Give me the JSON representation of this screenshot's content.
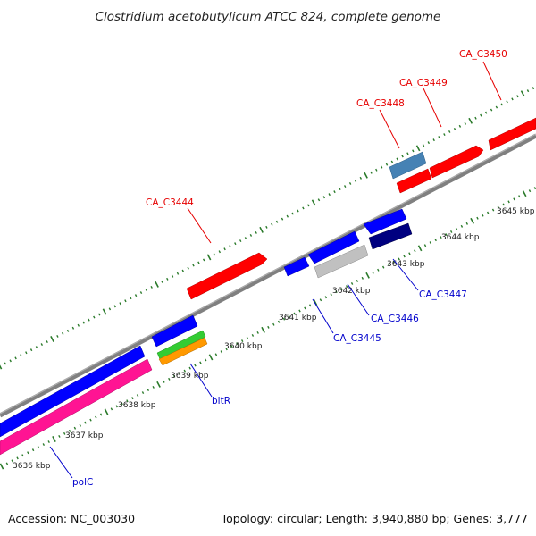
{
  "title": "Clostridium acetobutylicum ATCC 824, complete genome",
  "accession": "Accession: NC_003030",
  "summary": "Topology: circular; Length: 3,940,880 bp; Genes: 3,777",
  "colors": {
    "forward_label": "#e60000",
    "reverse_label": "#0000cc",
    "backbone": "#808080",
    "tick": "#2a7a2a"
  },
  "scale_ticks": [
    {
      "label": "3636 kbp"
    },
    {
      "label": "3637 kbp"
    },
    {
      "label": "3638 kbp"
    },
    {
      "label": "3639 kbp"
    },
    {
      "label": "3640 kbp"
    },
    {
      "label": "3641 kbp"
    },
    {
      "label": "3642 kbp"
    },
    {
      "label": "3643 kbp"
    },
    {
      "label": "3644 kbp"
    },
    {
      "label": "3645 kbp"
    }
  ],
  "gene_labels": [
    {
      "id": "CA_C3450",
      "strand": "forward"
    },
    {
      "id": "CA_C3449",
      "strand": "forward"
    },
    {
      "id": "CA_C3448",
      "strand": "forward"
    },
    {
      "id": "CA_C3444",
      "strand": "forward"
    },
    {
      "id": "CA_C3447",
      "strand": "reverse"
    },
    {
      "id": "CA_C3446",
      "strand": "reverse"
    },
    {
      "id": "CA_C3445",
      "strand": "reverse"
    },
    {
      "id": "bltR",
      "strand": "reverse"
    },
    {
      "id": "polC",
      "strand": "reverse"
    }
  ],
  "features": [
    {
      "name": "feature-ca-c3450",
      "color": "#ff0000"
    },
    {
      "name": "feature-ca-c3449",
      "color": "#ff0000"
    },
    {
      "name": "feature-ca-c3448-a",
      "color": "#4682b4"
    },
    {
      "name": "feature-ca-c3448-b",
      "color": "#ff0000"
    },
    {
      "name": "feature-ca-c3444",
      "color": "#ff0000"
    },
    {
      "name": "feature-ca-c3447-a",
      "color": "#0000ff"
    },
    {
      "name": "feature-ca-c3447-b",
      "color": "#000080"
    },
    {
      "name": "feature-ca-c3446-a",
      "color": "#0000ff"
    },
    {
      "name": "feature-ca-c3446-b",
      "color": "#c0c0c0"
    },
    {
      "name": "feature-ca-c3445",
      "color": "#0000ff"
    },
    {
      "name": "feature-bltr-a",
      "color": "#0000ff"
    },
    {
      "name": "feature-bltr-b",
      "color": "#33cc33"
    },
    {
      "name": "feature-bltr-c",
      "color": "#ff9900"
    },
    {
      "name": "feature-polc-a",
      "color": "#0000ff"
    },
    {
      "name": "feature-polc-b",
      "color": "#ff1493"
    }
  ]
}
